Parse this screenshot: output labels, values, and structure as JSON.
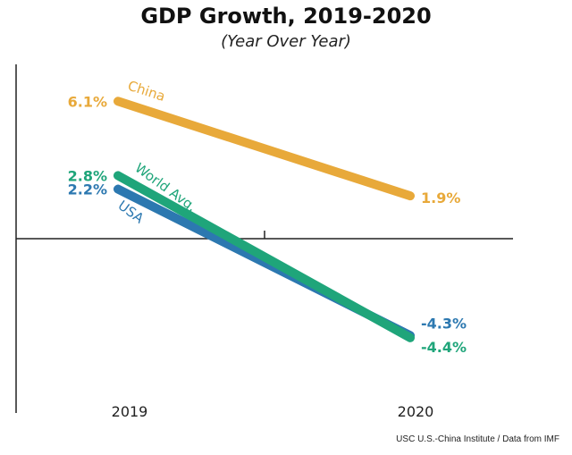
{
  "chart_data": {
    "type": "line",
    "title": "GDP Growth, 2019-2020",
    "subtitle": "(Year Over Year)",
    "categories": [
      "2019",
      "2020"
    ],
    "series": [
      {
        "name": "China",
        "values": [
          6.1,
          1.9
        ],
        "labels": [
          "6.1%",
          "1.9%"
        ],
        "color": "#E8A93A"
      },
      {
        "name": "World Avg.",
        "values": [
          2.8,
          -4.4
        ],
        "labels": [
          "2.8%",
          "-4.4%"
        ],
        "color": "#1FA57A"
      },
      {
        "name": "USA",
        "values": [
          2.2,
          -4.3
        ],
        "labels": [
          "2.2%",
          "-4.3%"
        ],
        "color": "#2C78B0"
      }
    ],
    "grid": false,
    "legend": "inline labels on lines"
  },
  "source": "USC U.S.-China Institute / Data from IMF"
}
